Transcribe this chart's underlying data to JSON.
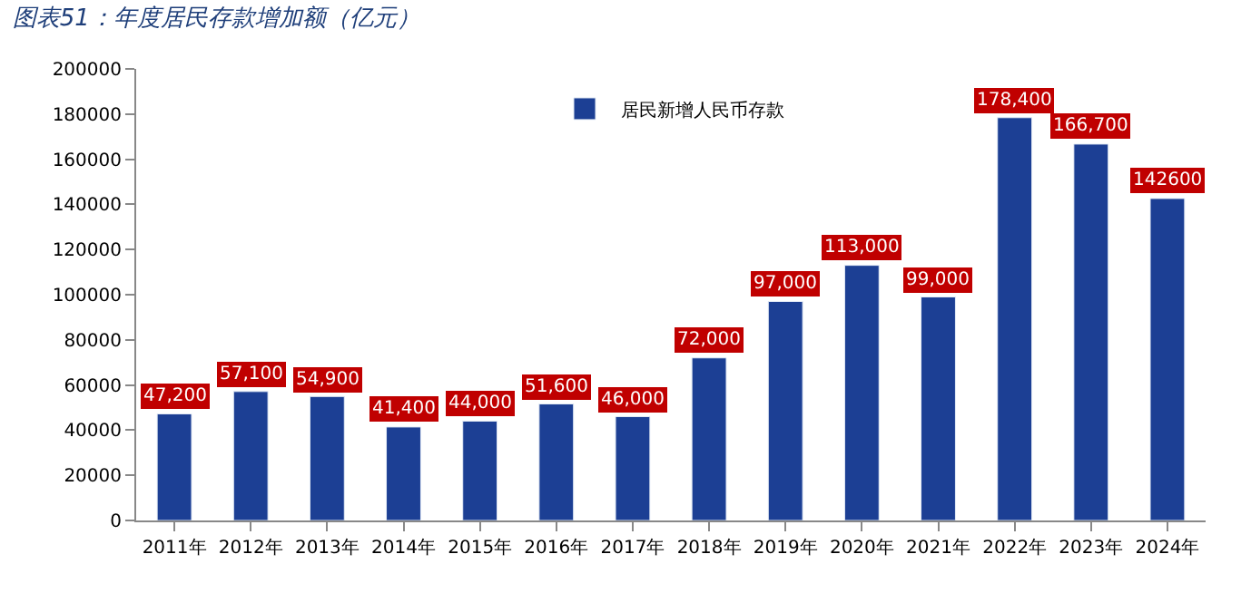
{
  "chart_data": {
    "type": "bar",
    "title": "图表51：年度居民存款增加额（亿元）",
    "categories": [
      "2011年",
      "2012年",
      "2013年",
      "2014年",
      "2015年",
      "2016年",
      "2017年",
      "2018年",
      "2019年",
      "2020年",
      "2021年",
      "2022年",
      "2023年",
      "2024年"
    ],
    "series": [
      {
        "name": "居民新增人民币存款",
        "color": "#1c3f94",
        "values": [
          47200,
          57100,
          54900,
          41400,
          44000,
          51600,
          46000,
          72000,
          97000,
          113000,
          99000,
          178400,
          166700,
          142600
        ],
        "value_labels": [
          "47,200",
          "57,100",
          "54,900",
          "41,400",
          "44,000",
          "51,600",
          "46,000",
          "72,000",
          "97,000",
          "113,000",
          "99,000",
          "178,400",
          "166,700",
          "142600"
        ]
      }
    ],
    "ylim": [
      0,
      200000
    ],
    "yticks": [
      0,
      20000,
      40000,
      60000,
      80000,
      100000,
      120000,
      140000,
      160000,
      180000,
      200000
    ],
    "legend": "top"
  }
}
